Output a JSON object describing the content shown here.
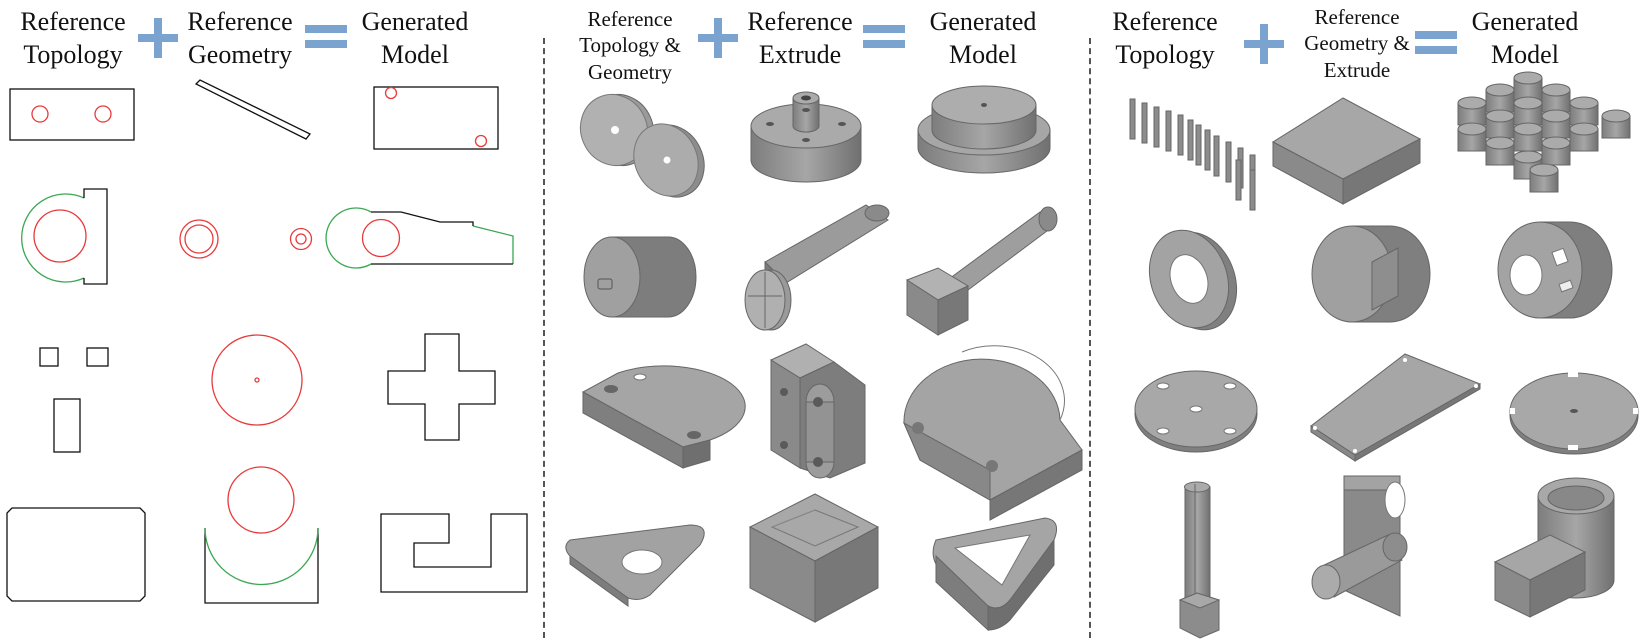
{
  "colors": {
    "accent": "#7ba3d0",
    "red": "#e83a3a",
    "green": "#3aa852",
    "line": "#111111",
    "shade_top": "#a3a3a3",
    "shade_left": "#8a8a8a",
    "shade_right": "#757575"
  },
  "panels": [
    {
      "headers": [
        "Reference Topology",
        "Reference Geometry",
        "Generated Model"
      ],
      "operators": [
        "plus-icon",
        "equals-icon"
      ]
    },
    {
      "headers": [
        "Reference Topology & Geometry",
        "Reference Extrude",
        "Generated Model"
      ],
      "operators": [
        "plus-icon",
        "equals-icon"
      ]
    },
    {
      "headers": [
        "Reference Topology",
        "Reference Geometry & Extrude",
        "Generated Model"
      ],
      "operators": [
        "plus-icon",
        "equals-icon"
      ]
    }
  ]
}
